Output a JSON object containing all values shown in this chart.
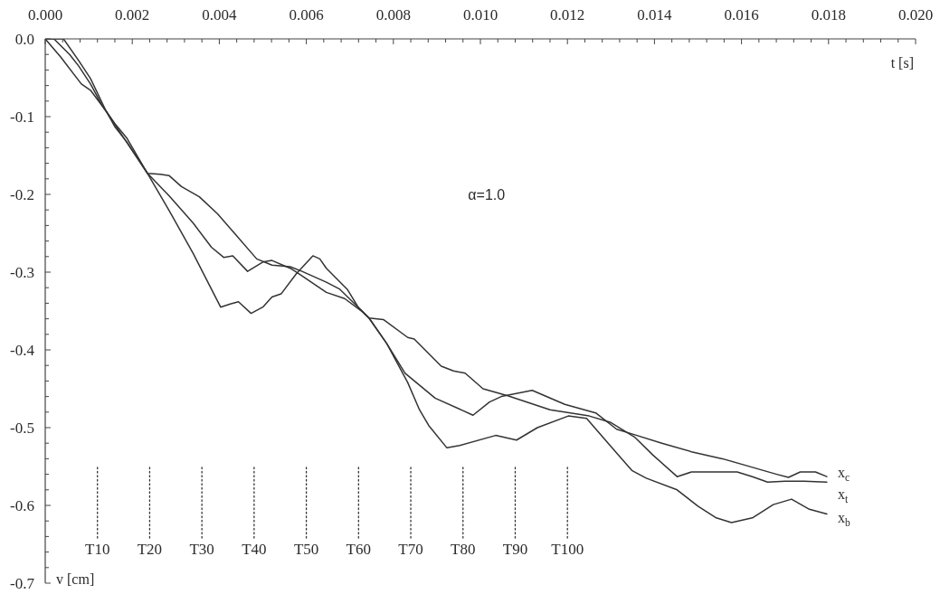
{
  "chart_data": {
    "type": "line",
    "xlabel": "t [s]",
    "ylabel": "v [cm]",
    "annotations": [
      "α=1.0"
    ],
    "xlim": [
      0,
      0.02
    ],
    "ylim": [
      -0.7,
      0
    ],
    "xticks": [
      {
        "value": 0,
        "label": "0.000"
      },
      {
        "value": 0.0004,
        "label": null
      },
      {
        "value": 0.0008,
        "label": null
      },
      {
        "value": 0.0012,
        "label": null
      },
      {
        "value": 0.0016,
        "label": null
      },
      {
        "value": 0.002,
        "label": "0.002"
      },
      {
        "value": 0.0024,
        "label": null
      },
      {
        "value": 0.0028,
        "label": null
      },
      {
        "value": 0.0032,
        "label": null
      },
      {
        "value": 0.0036,
        "label": null
      },
      {
        "value": 0.004,
        "label": "0.004"
      },
      {
        "value": 0.0044,
        "label": null
      },
      {
        "value": 0.0048,
        "label": null
      },
      {
        "value": 0.0052,
        "label": null
      },
      {
        "value": 0.0056,
        "label": null
      },
      {
        "value": 0.006,
        "label": "0.006"
      },
      {
        "value": 0.0064,
        "label": null
      },
      {
        "value": 0.0068,
        "label": null
      },
      {
        "value": 0.0072,
        "label": null
      },
      {
        "value": 0.0076,
        "label": null
      },
      {
        "value": 0.008,
        "label": "0.008"
      },
      {
        "value": 0.0084,
        "label": null
      },
      {
        "value": 0.0088,
        "label": null
      },
      {
        "value": 0.0092,
        "label": null
      },
      {
        "value": 0.0096,
        "label": null
      },
      {
        "value": 0.01,
        "label": "0.010"
      },
      {
        "value": 0.0104,
        "label": null
      },
      {
        "value": 0.0108,
        "label": null
      },
      {
        "value": 0.0112,
        "label": null
      },
      {
        "value": 0.0116,
        "label": null
      },
      {
        "value": 0.012,
        "label": "0.012"
      },
      {
        "value": 0.0124,
        "label": null
      },
      {
        "value": 0.0128,
        "label": null
      },
      {
        "value": 0.0132,
        "label": null
      },
      {
        "value": 0.0136,
        "label": null
      },
      {
        "value": 0.014,
        "label": "0.014"
      },
      {
        "value": 0.0144,
        "label": null
      },
      {
        "value": 0.0148,
        "label": null
      },
      {
        "value": 0.0152,
        "label": null
      },
      {
        "value": 0.0156,
        "label": null
      },
      {
        "value": 0.016,
        "label": "0.016"
      },
      {
        "value": 0.0164,
        "label": null
      },
      {
        "value": 0.0168,
        "label": null
      },
      {
        "value": 0.0172,
        "label": null
      },
      {
        "value": 0.0176,
        "label": null
      },
      {
        "value": 0.018,
        "label": "0.018"
      },
      {
        "value": 0.0184,
        "label": null
      },
      {
        "value": 0.0188,
        "label": null
      },
      {
        "value": 0.0192,
        "label": null
      },
      {
        "value": 0.0196,
        "label": null
      },
      {
        "value": 0.02,
        "label": "0.020"
      }
    ],
    "yticks": [
      {
        "value": 0,
        "label": "0.0"
      },
      {
        "value": -0.02,
        "label": null
      },
      {
        "value": -0.04,
        "label": null
      },
      {
        "value": -0.06,
        "label": null
      },
      {
        "value": -0.08,
        "label": null
      },
      -0.1,
      {
        "value": -0.12,
        "label": null
      },
      {
        "value": -0.14,
        "label": null
      },
      {
        "value": -0.16,
        "label": null
      },
      {
        "value": -0.18,
        "label": null
      },
      -0.2,
      {
        "value": -0.22,
        "label": null
      },
      {
        "value": -0.24,
        "label": null
      },
      {
        "value": -0.26,
        "label": null
      },
      {
        "value": -0.28,
        "label": null
      },
      -0.3,
      {
        "value": -0.32,
        "label": null
      },
      {
        "value": -0.34,
        "label": null
      },
      {
        "value": -0.36,
        "label": null
      },
      {
        "value": -0.38,
        "label": null
      },
      -0.4,
      {
        "value": -0.42,
        "label": null
      },
      {
        "value": -0.44,
        "label": null
      },
      {
        "value": -0.46,
        "label": null
      },
      {
        "value": -0.48,
        "label": null
      },
      -0.5,
      {
        "value": -0.52,
        "label": null
      },
      {
        "value": -0.54,
        "label": null
      },
      {
        "value": -0.56,
        "label": null
      },
      {
        "value": -0.58,
        "label": null
      },
      -0.6,
      {
        "value": -0.62,
        "label": null
      },
      {
        "value": -0.64,
        "label": null
      },
      {
        "value": -0.66,
        "label": null
      },
      {
        "value": -0.68,
        "label": null
      },
      -0.7
    ],
    "ref_lines": [
      {
        "axis": "x",
        "value": 0.0012,
        "label": "T10",
        "line_style": "dotted"
      },
      {
        "axis": "x",
        "value": 0.0024,
        "label": "T20",
        "line_style": "dotted"
      },
      {
        "axis": "x",
        "value": 0.0036,
        "label": "T30",
        "line_style": "dotted"
      },
      {
        "axis": "x",
        "value": 0.0048,
        "label": "T40",
        "line_style": "dotted"
      },
      {
        "axis": "x",
        "value": 0.006,
        "label": "T50",
        "line_style": "dotted"
      },
      {
        "axis": "x",
        "value": 0.0072,
        "label": "T60",
        "line_style": "dotted"
      },
      {
        "axis": "x",
        "value": 0.0084,
        "label": "T70",
        "line_style": "dotted"
      },
      {
        "axis": "x",
        "value": 0.0096,
        "label": "T80",
        "line_style": "dotted"
      },
      {
        "axis": "x",
        "value": 0.0108,
        "label": "T90",
        "line_style": "dotted"
      },
      {
        "axis": "x",
        "value": 0.012,
        "label": "T100",
        "line_style": "dotted"
      }
    ],
    "series": [
      {
        "name": "x$_{c}$",
        "color": "#333333",
        "x": [
          0,
          0.0002,
          0.00056,
          0.00077,
          0.00104,
          0.00131,
          0.0016,
          0.00188,
          0.00235,
          0.00285,
          0.0034,
          0.00382,
          0.0041,
          0.00431,
          0.00465,
          0.005,
          0.00521,
          0.00563,
          0.0058,
          0.00646,
          0.00688,
          0.00729,
          0.00744,
          0.00785,
          0.00827,
          0.00896,
          0.00983,
          0.01021,
          0.01048,
          0.01119,
          0.01194,
          0.01265,
          0.01313,
          0.01348,
          0.01417,
          0.01485,
          0.01556,
          0.01625,
          0.01681,
          0.01708,
          0.01735,
          0.0177,
          0.01796
        ],
        "values": [
          0,
          0,
          -0.02,
          -0.035,
          -0.058,
          -0.086,
          -0.109,
          -0.128,
          -0.173,
          -0.202,
          -0.237,
          -0.268,
          -0.281,
          -0.279,
          -0.299,
          -0.287,
          -0.285,
          -0.295,
          -0.301,
          -0.326,
          -0.334,
          -0.351,
          -0.359,
          -0.392,
          -0.43,
          -0.462,
          -0.484,
          -0.467,
          -0.46,
          -0.452,
          -0.47,
          -0.481,
          -0.502,
          -0.508,
          -0.52,
          -0.531,
          -0.54,
          -0.551,
          -0.56,
          -0.564,
          -0.557,
          -0.557,
          -0.563
        ]
      },
      {
        "name": "x$_{t}$",
        "color": "#333333",
        "x": [
          0,
          0.00035,
          0.00083,
          0.00104,
          0.0014,
          0.0016,
          0.00188,
          0.00235,
          0.00264,
          0.00285,
          0.00313,
          0.00354,
          0.00396,
          0.00438,
          0.00486,
          0.00521,
          0.00563,
          0.0059,
          0.00646,
          0.00677,
          0.00719,
          0.00744,
          0.00777,
          0.00833,
          0.00848,
          0.0091,
          0.00938,
          0.00965,
          0.01006,
          0.01063,
          0.0116,
          0.0125,
          0.01298,
          0.01354,
          0.01396,
          0.01452,
          0.01485,
          0.0159,
          0.01625,
          0.0166,
          0.017,
          0.01744,
          0.01796
        ],
        "values": [
          0,
          -0.023,
          -0.058,
          -0.066,
          -0.093,
          -0.113,
          -0.133,
          -0.173,
          -0.174,
          -0.176,
          -0.19,
          -0.203,
          -0.225,
          -0.252,
          -0.283,
          -0.291,
          -0.293,
          -0.299,
          -0.313,
          -0.322,
          -0.345,
          -0.359,
          -0.361,
          -0.384,
          -0.386,
          -0.421,
          -0.427,
          -0.43,
          -0.45,
          -0.459,
          -0.477,
          -0.485,
          -0.493,
          -0.512,
          -0.535,
          -0.563,
          -0.557,
          -0.557,
          -0.563,
          -0.57,
          -0.569,
          -0.569,
          -0.57
        ]
      },
      {
        "name": "x$_{b}$",
        "color": "#333333",
        "x": [
          0,
          0.00042,
          0.00077,
          0.00104,
          0.0014,
          0.00173,
          0.00235,
          0.00285,
          0.0034,
          0.00382,
          0.00403,
          0.00425,
          0.00444,
          0.00473,
          0.005,
          0.00521,
          0.00542,
          0.00577,
          0.00615,
          0.00631,
          0.00646,
          0.00694,
          0.00719,
          0.00744,
          0.00785,
          0.00833,
          0.0086,
          0.00881,
          0.00923,
          0.00952,
          0.01035,
          0.01083,
          0.01131,
          0.01202,
          0.01244,
          0.01298,
          0.01348,
          0.01381,
          0.01452,
          0.015,
          0.01542,
          0.01577,
          0.01625,
          0.01673,
          0.01715,
          0.01756,
          0.01796
        ],
        "values": [
          0,
          0,
          -0.028,
          -0.051,
          -0.093,
          -0.121,
          -0.173,
          -0.221,
          -0.276,
          -0.322,
          -0.345,
          -0.341,
          -0.338,
          -0.353,
          -0.345,
          -0.332,
          -0.328,
          -0.302,
          -0.279,
          -0.283,
          -0.295,
          -0.322,
          -0.345,
          -0.359,
          -0.392,
          -0.442,
          -0.477,
          -0.497,
          -0.526,
          -0.523,
          -0.51,
          -0.516,
          -0.5,
          -0.485,
          -0.488,
          -0.523,
          -0.555,
          -0.565,
          -0.58,
          -0.601,
          -0.616,
          -0.622,
          -0.616,
          -0.599,
          -0.592,
          -0.605,
          -0.611
        ]
      }
    ]
  }
}
